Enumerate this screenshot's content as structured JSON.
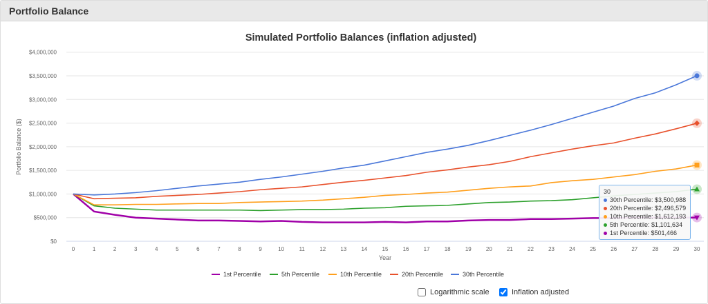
{
  "panel": {
    "title": "Portfolio Balance"
  },
  "chart_data": {
    "type": "line",
    "title": "Simulated Portfolio Balances (inflation adjusted)",
    "xlabel": "Year",
    "ylabel": "Portfolio Balance ($)",
    "ylim": [
      0,
      4000000
    ],
    "yticks": [
      "$0",
      "$500,000",
      "$1,000,000",
      "$1,500,000",
      "$2,000,000",
      "$2,500,000",
      "$3,000,000",
      "$3,500,000",
      "$4,000,000"
    ],
    "x": [
      0,
      1,
      2,
      3,
      4,
      5,
      6,
      7,
      8,
      9,
      10,
      11,
      12,
      13,
      14,
      15,
      16,
      17,
      18,
      19,
      20,
      21,
      22,
      23,
      24,
      25,
      26,
      27,
      28,
      29,
      30
    ],
    "grid": true,
    "legend_position": "bottom",
    "series": [
      {
        "name": "1st Percentile",
        "color": "#a000a8",
        "marker": "triangle-down",
        "values": [
          1000000,
          630000,
          560000,
          500000,
          480000,
          460000,
          440000,
          440000,
          430000,
          420000,
          430000,
          410000,
          400000,
          400000,
          400000,
          410000,
          400000,
          420000,
          420000,
          440000,
          450000,
          450000,
          470000,
          470000,
          480000,
          490000,
          490000,
          500000,
          500000,
          500000,
          501466
        ]
      },
      {
        "name": "5th Percentile",
        "color": "#2ca02c",
        "marker": "triangle",
        "values": [
          1000000,
          750000,
          700000,
          680000,
          660000,
          660000,
          660000,
          660000,
          660000,
          650000,
          660000,
          670000,
          670000,
          680000,
          700000,
          710000,
          740000,
          750000,
          760000,
          790000,
          820000,
          830000,
          850000,
          860000,
          880000,
          920000,
          960000,
          990000,
          1020000,
          1050000,
          1101634
        ]
      },
      {
        "name": "10th Percentile",
        "color": "#ff9f1c",
        "marker": "square",
        "values": [
          1000000,
          770000,
          770000,
          780000,
          780000,
          790000,
          800000,
          800000,
          820000,
          830000,
          840000,
          850000,
          870000,
          900000,
          930000,
          970000,
          990000,
          1020000,
          1040000,
          1080000,
          1120000,
          1150000,
          1170000,
          1240000,
          1280000,
          1310000,
          1360000,
          1410000,
          1480000,
          1530000,
          1612193
        ]
      },
      {
        "name": "20th Percentile",
        "color": "#e8512c",
        "marker": "diamond",
        "values": [
          1000000,
          900000,
          910000,
          920000,
          950000,
          970000,
          990000,
          1020000,
          1050000,
          1090000,
          1120000,
          1150000,
          1200000,
          1250000,
          1290000,
          1340000,
          1390000,
          1460000,
          1510000,
          1570000,
          1620000,
          1690000,
          1790000,
          1870000,
          1950000,
          2020000,
          2080000,
          2180000,
          2270000,
          2380000,
          2496579
        ]
      },
      {
        "name": "30th Percentile",
        "color": "#4a77d9",
        "marker": "circle",
        "values": [
          1000000,
          980000,
          1000000,
          1030000,
          1070000,
          1120000,
          1170000,
          1210000,
          1250000,
          1310000,
          1360000,
          1420000,
          1480000,
          1550000,
          1610000,
          1700000,
          1790000,
          1880000,
          1950000,
          2030000,
          2130000,
          2240000,
          2350000,
          2470000,
          2600000,
          2730000,
          2860000,
          3020000,
          3140000,
          3310000,
          3500988
        ]
      }
    ],
    "tooltip": {
      "header": "30",
      "rows": [
        {
          "text": "30th Percentile: $3,500,988",
          "color": "#4a77d9"
        },
        {
          "text": "20th Percentile: $2,496,579",
          "color": "#e8512c"
        },
        {
          "text": "10th Percentile: $1,612,193",
          "color": "#ff9f1c"
        },
        {
          "text": "5th Percentile: $1,101,634",
          "color": "#2ca02c"
        },
        {
          "text": "1st Percentile: $501,466",
          "color": "#a000a8"
        }
      ]
    }
  },
  "controls": {
    "log_scale": {
      "label": "Logarithmic scale",
      "checked": false
    },
    "inflation_adjusted": {
      "label": "Inflation adjusted",
      "checked": true
    }
  }
}
